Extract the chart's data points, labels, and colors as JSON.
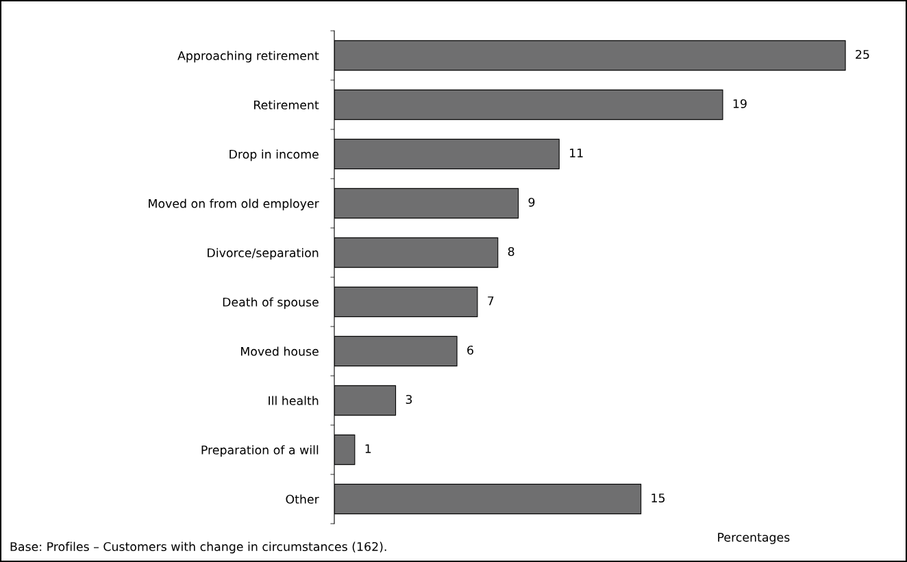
{
  "chart_data": {
    "type": "bar",
    "orientation": "horizontal",
    "categories": [
      "Approaching retirement",
      "Retirement",
      "Drop in income",
      "Moved on from old employer",
      "Divorce/separation",
      "Death of spouse",
      "Moved house",
      "Ill health",
      "Preparation of a will",
      "Other"
    ],
    "values": [
      25,
      19,
      11,
      9,
      8,
      7,
      6,
      3,
      1,
      15
    ],
    "color": "#6f6f70",
    "data_labels": true,
    "xlabel": "Percentages",
    "annotations": [
      "Base: Profiles – Customers with change in circumstances (162)."
    ],
    "grid": false,
    "legend": false
  }
}
